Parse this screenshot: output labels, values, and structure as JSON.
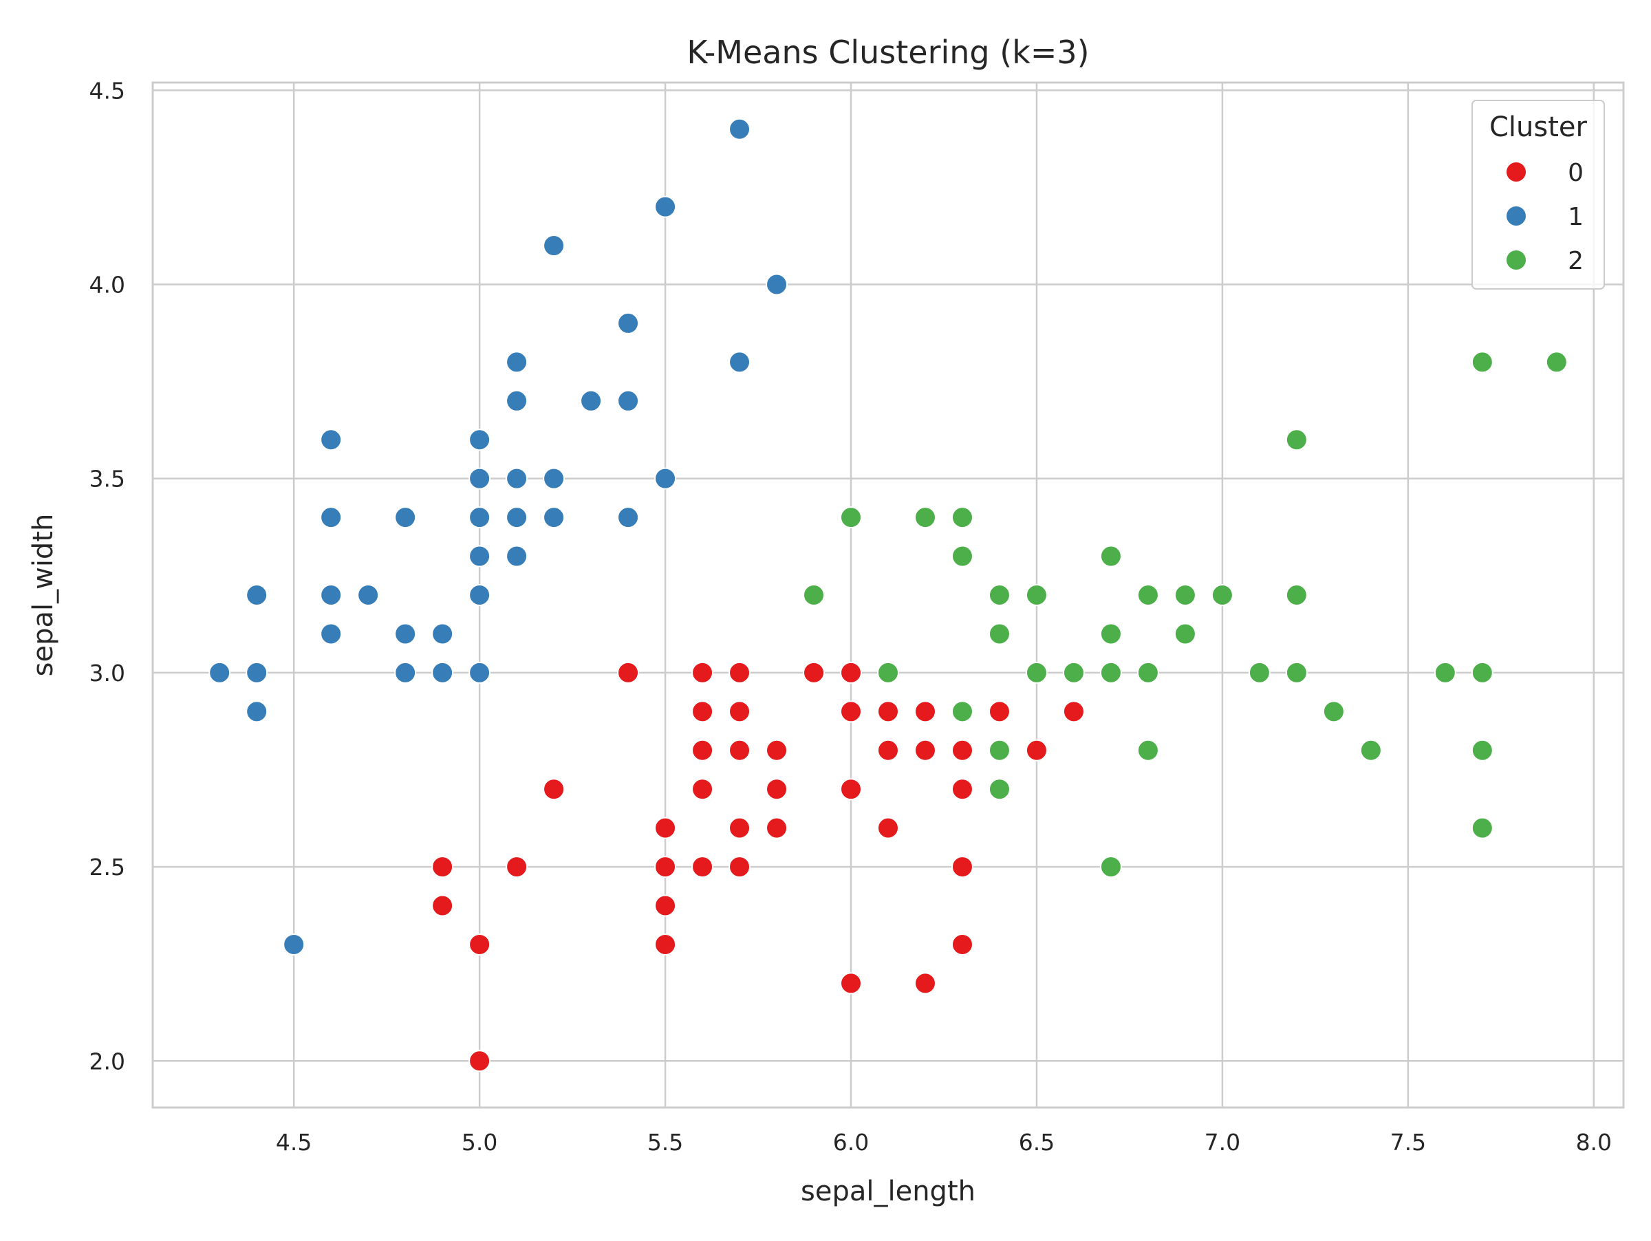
{
  "chart_data": {
    "type": "scatter",
    "title": "K-Means Clustering (k=3)",
    "xlabel": "sepal_length",
    "ylabel": "sepal_width",
    "xlim": [
      4.12,
      8.08
    ],
    "ylim": [
      1.88,
      4.52
    ],
    "xticks": [
      "4.5",
      "5.0",
      "5.5",
      "6.0",
      "6.5",
      "7.0",
      "7.5",
      "8.0"
    ],
    "yticks": [
      "2.0",
      "2.5",
      "3.0",
      "3.5",
      "4.0",
      "4.5"
    ],
    "grid": true,
    "legend": {
      "title": "Cluster",
      "placement": "top-right"
    },
    "series": [
      {
        "name": "0",
        "color": "#e41a1c",
        "points": [
          [
            5.0,
            2.0
          ],
          [
            4.9,
            2.4
          ],
          [
            4.9,
            2.5
          ],
          [
            5.0,
            2.3
          ],
          [
            5.1,
            2.5
          ],
          [
            5.2,
            2.7
          ],
          [
            5.4,
            3.0
          ],
          [
            5.5,
            2.3
          ],
          [
            5.5,
            2.4
          ],
          [
            5.5,
            2.5
          ],
          [
            5.5,
            2.6
          ],
          [
            5.6,
            2.5
          ],
          [
            5.6,
            2.7
          ],
          [
            5.6,
            2.8
          ],
          [
            5.6,
            2.9
          ],
          [
            5.6,
            3.0
          ],
          [
            5.7,
            2.5
          ],
          [
            5.7,
            2.6
          ],
          [
            5.7,
            2.8
          ],
          [
            5.7,
            2.9
          ],
          [
            5.7,
            3.0
          ],
          [
            5.8,
            2.6
          ],
          [
            5.8,
            2.7
          ],
          [
            5.8,
            2.8
          ],
          [
            5.9,
            3.0
          ],
          [
            6.0,
            2.2
          ],
          [
            6.0,
            2.7
          ],
          [
            6.0,
            2.9
          ],
          [
            6.0,
            3.0
          ],
          [
            6.1,
            2.6
          ],
          [
            6.1,
            2.8
          ],
          [
            6.1,
            2.9
          ],
          [
            6.2,
            2.2
          ],
          [
            6.2,
            2.8
          ],
          [
            6.2,
            2.9
          ],
          [
            6.3,
            2.3
          ],
          [
            6.3,
            2.5
          ],
          [
            6.3,
            2.7
          ],
          [
            6.3,
            2.8
          ],
          [
            6.4,
            2.9
          ],
          [
            6.5,
            2.8
          ],
          [
            6.6,
            2.9
          ]
        ]
      },
      {
        "name": "1",
        "color": "#377eb8",
        "points": [
          [
            4.3,
            3.0
          ],
          [
            4.4,
            2.9
          ],
          [
            4.4,
            3.0
          ],
          [
            4.4,
            3.2
          ],
          [
            4.5,
            2.3
          ],
          [
            4.6,
            3.1
          ],
          [
            4.6,
            3.2
          ],
          [
            4.6,
            3.4
          ],
          [
            4.6,
            3.6
          ],
          [
            4.7,
            3.2
          ],
          [
            4.8,
            3.0
          ],
          [
            4.8,
            3.1
          ],
          [
            4.8,
            3.4
          ],
          [
            4.9,
            3.0
          ],
          [
            4.9,
            3.1
          ],
          [
            5.0,
            3.0
          ],
          [
            5.0,
            3.2
          ],
          [
            5.0,
            3.3
          ],
          [
            5.0,
            3.4
          ],
          [
            5.0,
            3.5
          ],
          [
            5.0,
            3.6
          ],
          [
            5.1,
            3.3
          ],
          [
            5.1,
            3.4
          ],
          [
            5.1,
            3.5
          ],
          [
            5.1,
            3.7
          ],
          [
            5.1,
            3.8
          ],
          [
            5.2,
            3.4
          ],
          [
            5.2,
            3.5
          ],
          [
            5.2,
            4.1
          ],
          [
            5.3,
            3.7
          ],
          [
            5.4,
            3.4
          ],
          [
            5.4,
            3.7
          ],
          [
            5.4,
            3.9
          ],
          [
            5.5,
            3.5
          ],
          [
            5.5,
            4.2
          ],
          [
            5.7,
            3.8
          ],
          [
            5.7,
            4.4
          ],
          [
            5.8,
            4.0
          ]
        ]
      },
      {
        "name": "2",
        "color": "#4daf4a",
        "points": [
          [
            5.9,
            3.2
          ],
          [
            6.0,
            3.4
          ],
          [
            6.1,
            3.0
          ],
          [
            6.2,
            3.4
          ],
          [
            6.3,
            2.9
          ],
          [
            6.3,
            3.3
          ],
          [
            6.3,
            3.4
          ],
          [
            6.4,
            2.7
          ],
          [
            6.4,
            2.8
          ],
          [
            6.4,
            3.1
          ],
          [
            6.4,
            3.2
          ],
          [
            6.5,
            3.0
          ],
          [
            6.5,
            3.2
          ],
          [
            6.6,
            3.0
          ],
          [
            6.7,
            2.5
          ],
          [
            6.7,
            3.0
          ],
          [
            6.7,
            3.1
          ],
          [
            6.7,
            3.3
          ],
          [
            6.8,
            2.8
          ],
          [
            6.8,
            3.0
          ],
          [
            6.8,
            3.2
          ],
          [
            6.9,
            3.1
          ],
          [
            6.9,
            3.2
          ],
          [
            7.0,
            3.2
          ],
          [
            7.1,
            3.0
          ],
          [
            7.2,
            3.0
          ],
          [
            7.2,
            3.2
          ],
          [
            7.2,
            3.6
          ],
          [
            7.3,
            2.9
          ],
          [
            7.4,
            2.8
          ],
          [
            7.6,
            3.0
          ],
          [
            7.7,
            2.6
          ],
          [
            7.7,
            2.8
          ],
          [
            7.7,
            3.0
          ],
          [
            7.7,
            3.8
          ],
          [
            7.9,
            3.8
          ]
        ]
      }
    ]
  }
}
